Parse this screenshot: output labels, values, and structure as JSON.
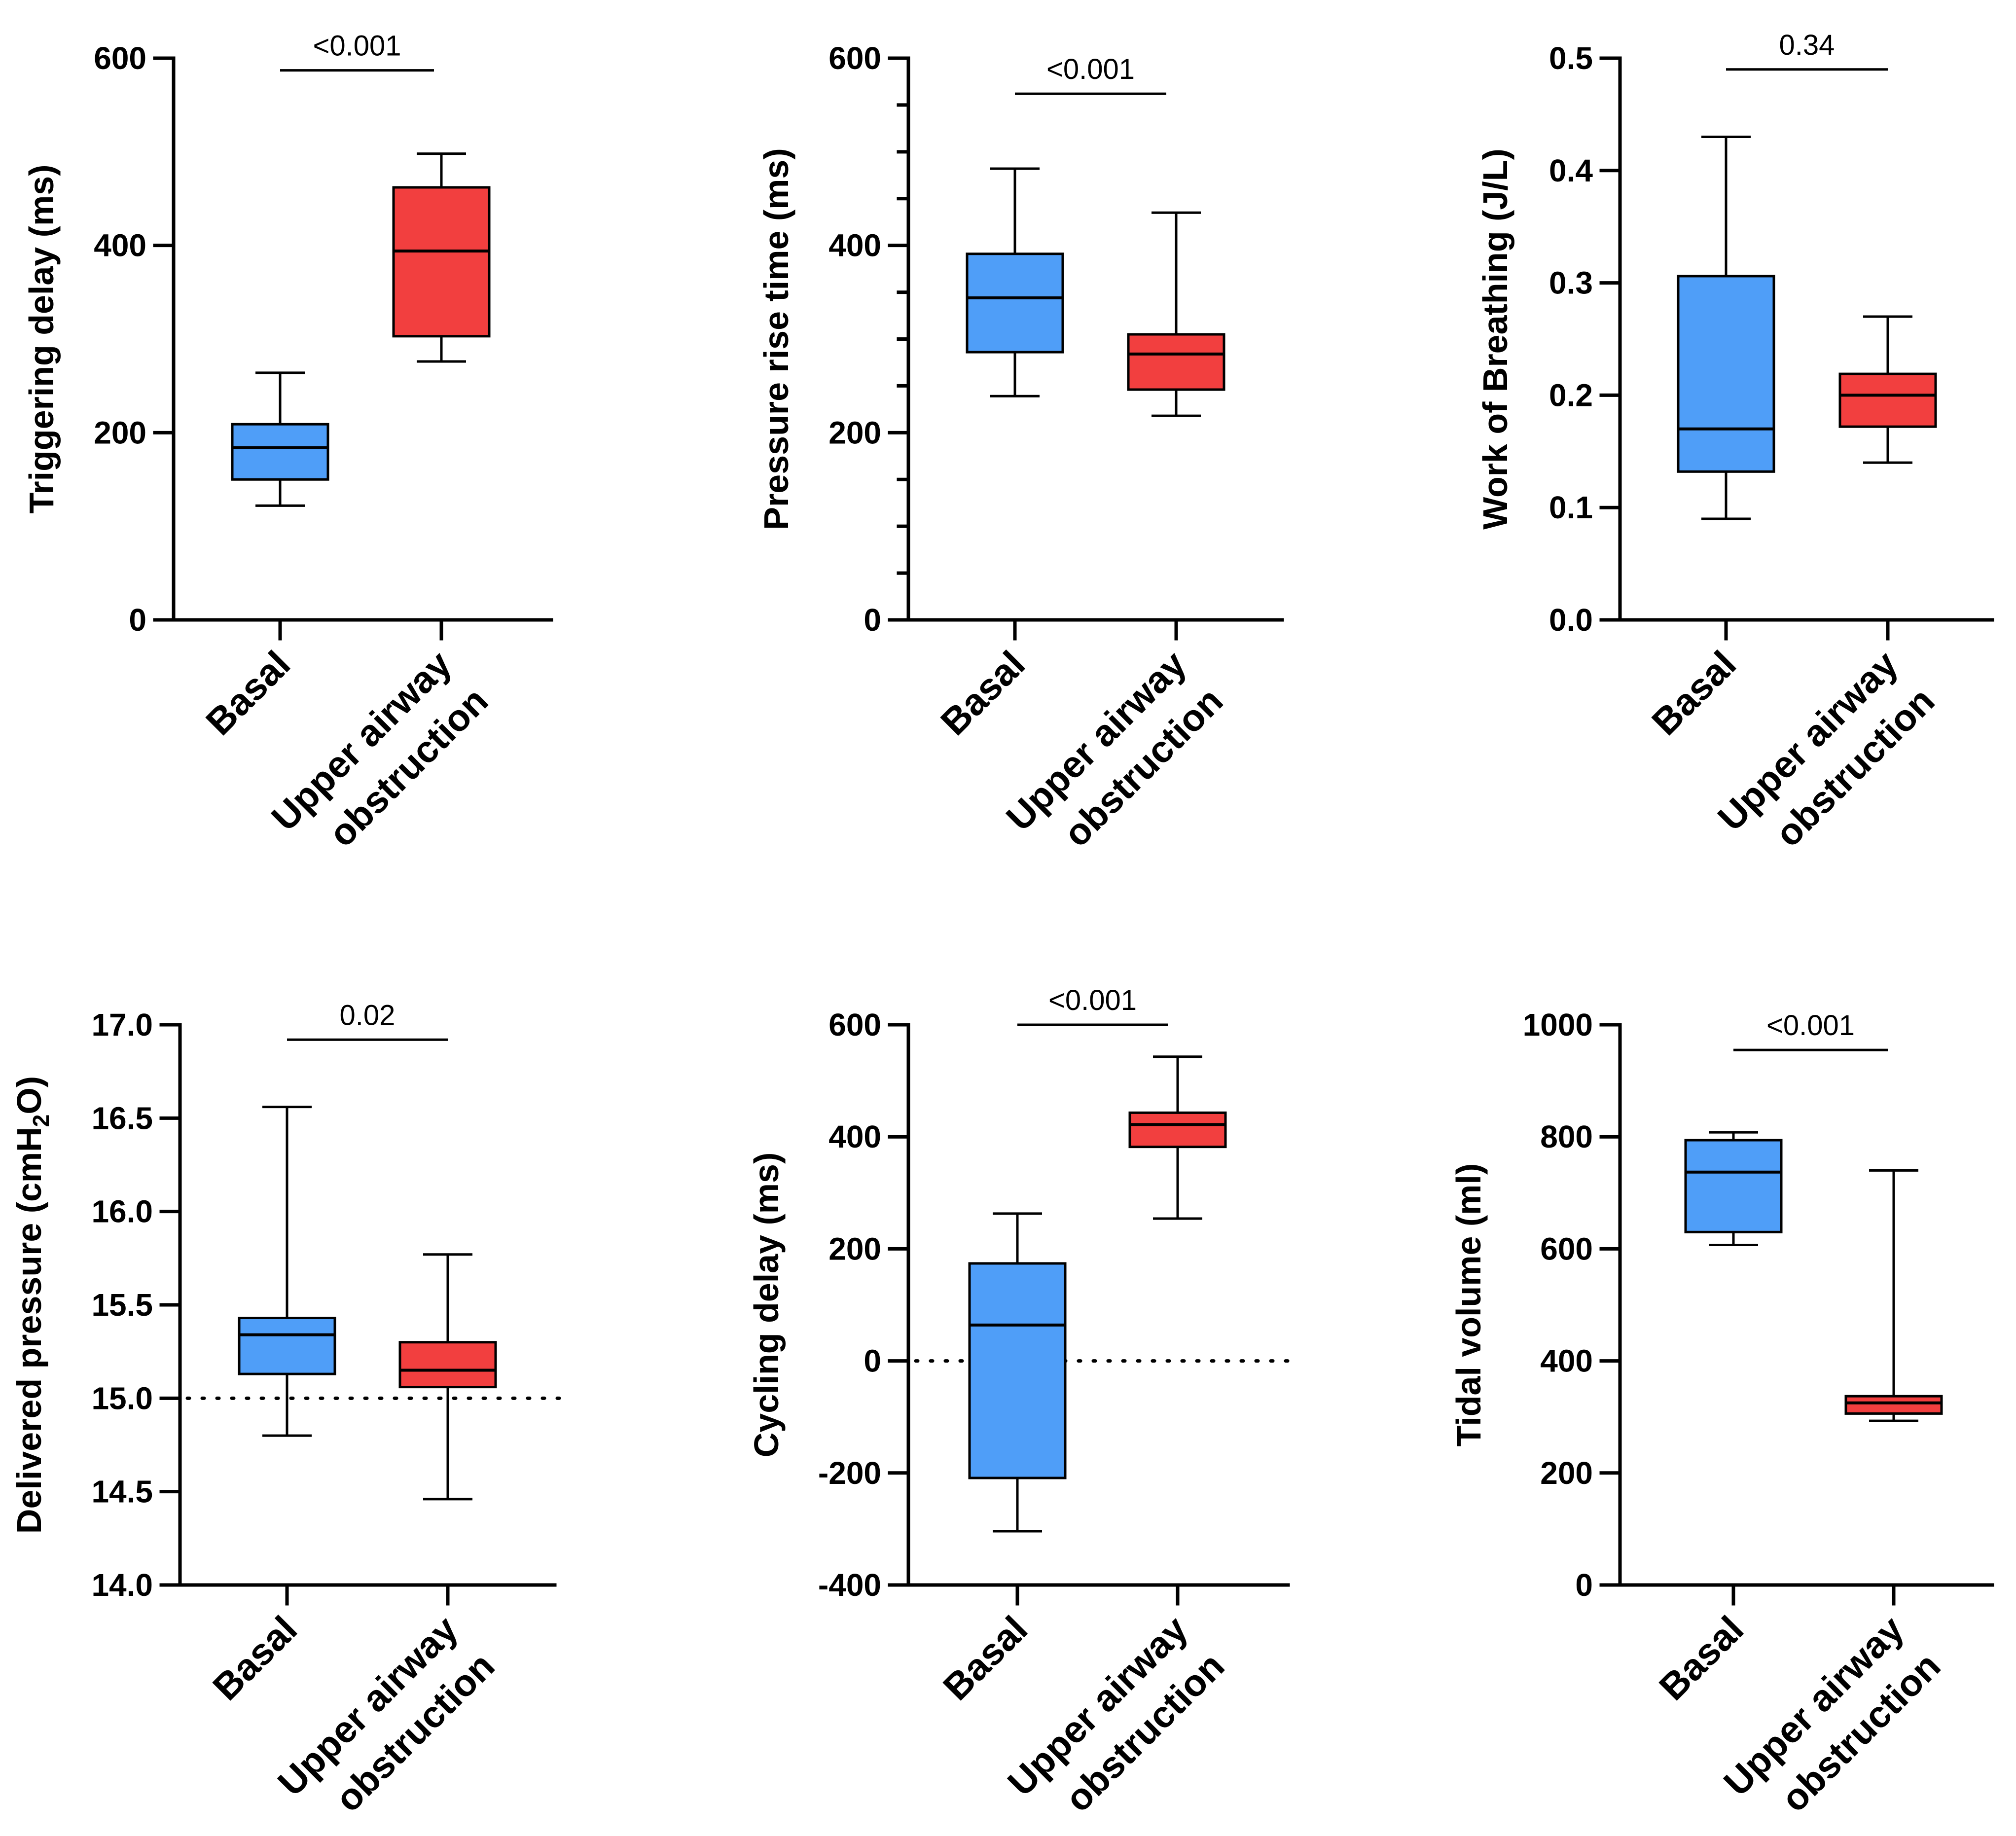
{
  "chart_data": [
    {
      "type": "box",
      "ylabel": "Triggering delay (ms)",
      "ylim": [
        0,
        600
      ],
      "yticks": [
        0,
        200,
        400,
        600
      ],
      "ytick_labels": [
        "0",
        "200",
        "400",
        "600"
      ],
      "minor_ticks": [],
      "categories": [
        "Basal",
        "Upper airway|obstruction"
      ],
      "boxes": [
        {
          "name": "Basal",
          "min": 122,
          "q1": 150,
          "median": 184,
          "q3": 209,
          "max": 264,
          "color": "#4f9ef8"
        },
        {
          "name": "Upper airway obstruction",
          "min": 276,
          "q1": 303,
          "median": 394,
          "q3": 462,
          "max": 498,
          "color": "#f23f3f"
        }
      ],
      "pvalue": "<0.001",
      "pvalue_y": 587,
      "reference_line": null
    },
    {
      "type": "box",
      "ylabel": "Pressure rise time (ms)",
      "ylim": [
        0,
        600
      ],
      "yticks": [
        0,
        200,
        400,
        600
      ],
      "ytick_labels": [
        "0",
        "200",
        "400",
        "600"
      ],
      "minor_ticks": [
        50,
        100,
        150,
        250,
        300,
        350,
        450,
        500,
        550
      ],
      "categories": [
        "Basal",
        "Upper airway|obstruction"
      ],
      "boxes": [
        {
          "name": "Basal",
          "min": 239,
          "q1": 286,
          "median": 344,
          "q3": 391,
          "max": 482,
          "color": "#4f9ef8"
        },
        {
          "name": "Upper airway obstruction",
          "min": 218,
          "q1": 246,
          "median": 284,
          "q3": 305,
          "max": 435,
          "color": "#f23f3f"
        }
      ],
      "pvalue": "<0.001",
      "pvalue_y": 562,
      "reference_line": null
    },
    {
      "type": "box",
      "ylabel": "Work of Breathing (J/L)",
      "ylim": [
        0,
        0.5
      ],
      "yticks": [
        0,
        0.1,
        0.2,
        0.3,
        0.4,
        0.5
      ],
      "ytick_labels": [
        "0.0",
        "0.1",
        "0.2",
        "0.3",
        "0.4",
        "0.5"
      ],
      "minor_ticks": [],
      "categories": [
        "Basal",
        "Upper airway|obstruction"
      ],
      "boxes": [
        {
          "name": "Basal",
          "min": 0.09,
          "q1": 0.132,
          "median": 0.17,
          "q3": 0.306,
          "max": 0.43,
          "color": "#4f9ef8"
        },
        {
          "name": "Upper airway obstruction",
          "min": 0.14,
          "q1": 0.172,
          "median": 0.2,
          "q3": 0.219,
          "max": 0.27,
          "color": "#f23f3f"
        }
      ],
      "pvalue": "0.34",
      "pvalue_y": 0.49,
      "reference_line": null
    },
    {
      "type": "box",
      "ylabel": "Delivered pressure (cmH2O)",
      "ylabel_parts": [
        "Delivered pressure (cmH",
        "2",
        "O)"
      ],
      "ylim": [
        14,
        17
      ],
      "yticks": [
        14,
        14.5,
        15,
        15.5,
        16,
        16.5,
        17
      ],
      "ytick_labels": [
        "14.0",
        "14.5",
        "15.0",
        "15.5",
        "16.0",
        "16.5",
        "17.0"
      ],
      "minor_ticks": [],
      "categories": [
        "Basal",
        "Upper airway|obstruction"
      ],
      "boxes": [
        {
          "name": "Basal",
          "min": 14.8,
          "q1": 15.13,
          "median": 15.34,
          "q3": 15.43,
          "max": 16.56,
          "color": "#4f9ef8"
        },
        {
          "name": "Upper airway obstruction",
          "min": 14.46,
          "q1": 15.06,
          "median": 15.15,
          "q3": 15.3,
          "max": 15.77,
          "color": "#f23f3f"
        }
      ],
      "pvalue": "0.02",
      "pvalue_y": 16.92,
      "reference_line": 15
    },
    {
      "type": "box",
      "ylabel": "Cycling delay (ms)",
      "ylim": [
        -400,
        600
      ],
      "yticks": [
        -400,
        -200,
        0,
        200,
        400,
        600
      ],
      "ytick_labels": [
        "-400",
        "-200",
        "0",
        "200",
        "400",
        "600"
      ],
      "minor_ticks": [],
      "categories": [
        "Basal",
        "Upper airway|obstruction"
      ],
      "boxes": [
        {
          "name": "Basal",
          "min": -304,
          "q1": -209,
          "median": 64,
          "q3": 174,
          "max": 263,
          "color": "#4f9ef8"
        },
        {
          "name": "Upper airway obstruction",
          "min": 254,
          "q1": 382,
          "median": 422,
          "q3": 443,
          "max": 543,
          "color": "#f23f3f"
        }
      ],
      "pvalue": "<0.001",
      "pvalue_y": 600,
      "reference_line": 0
    },
    {
      "type": "box",
      "ylabel": "Tidal volume (ml)",
      "ylim": [
        0,
        1000
      ],
      "yticks": [
        0,
        200,
        400,
        600,
        800,
        1000
      ],
      "ytick_labels": [
        "0",
        "200",
        "400",
        "600",
        "800",
        "1000"
      ],
      "minor_ticks": [],
      "categories": [
        "Basal",
        "Upper airway|obstruction"
      ],
      "boxes": [
        {
          "name": "Basal",
          "min": 607,
          "q1": 630,
          "median": 737,
          "q3": 794,
          "max": 808,
          "color": "#4f9ef8"
        },
        {
          "name": "Upper airway obstruction",
          "min": 293,
          "q1": 306,
          "median": 325,
          "q3": 337,
          "max": 740,
          "color": "#f23f3f"
        }
      ],
      "pvalue": "<0.001",
      "pvalue_y": 955,
      "reference_line": null
    }
  ]
}
